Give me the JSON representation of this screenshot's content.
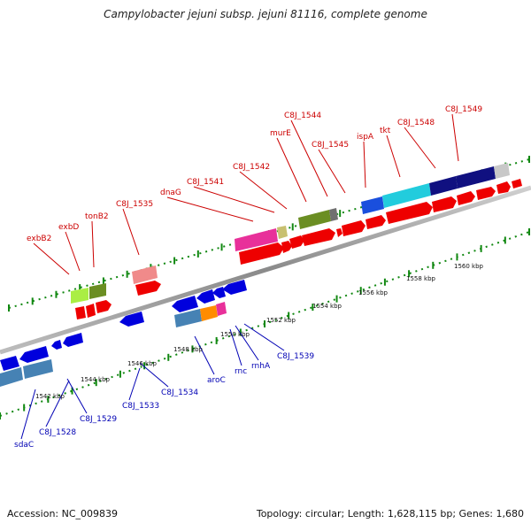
{
  "title": "Campylobacter jejuni subsp. jejuni 81116, complete genome",
  "footer": {
    "accession": "Accession: NC_009839",
    "topology": "Topology: circular; Length: 1,628,115 bp; Genes: 1,680"
  },
  "scale_labels": [
    "1542 kbp",
    "1544 kbp",
    "1546 kbp",
    "1548 kbp",
    "1550 kbp",
    "1552 kbp",
    "1554 kbp",
    "1556 kbp",
    "1558 kbp",
    "1560 kbp"
  ],
  "forward_gene_labels": [
    "exbB2",
    "exbD",
    "tonB2",
    "C8J_1535",
    "dnaG",
    "C8J_1541",
    "C8J_1542",
    "murE",
    "C8J_1544",
    "C8J_1545",
    "ispA",
    "tkt",
    "C8J_1548",
    "C8J_1549"
  ],
  "reverse_gene_labels": [
    "sdaC",
    "C8J_1528",
    "C8J_1529",
    "C8J_1533",
    "C8J_1534",
    "aroC",
    "rnc",
    "rnhA",
    "C8J_1539"
  ],
  "colors": {
    "forward_label": "#cc0000",
    "reverse_label": "#0000b4",
    "forward_cds": "#ee0000",
    "reverse_cds": "#0000dd",
    "backbone": "#999999",
    "tick": "#118811"
  }
}
